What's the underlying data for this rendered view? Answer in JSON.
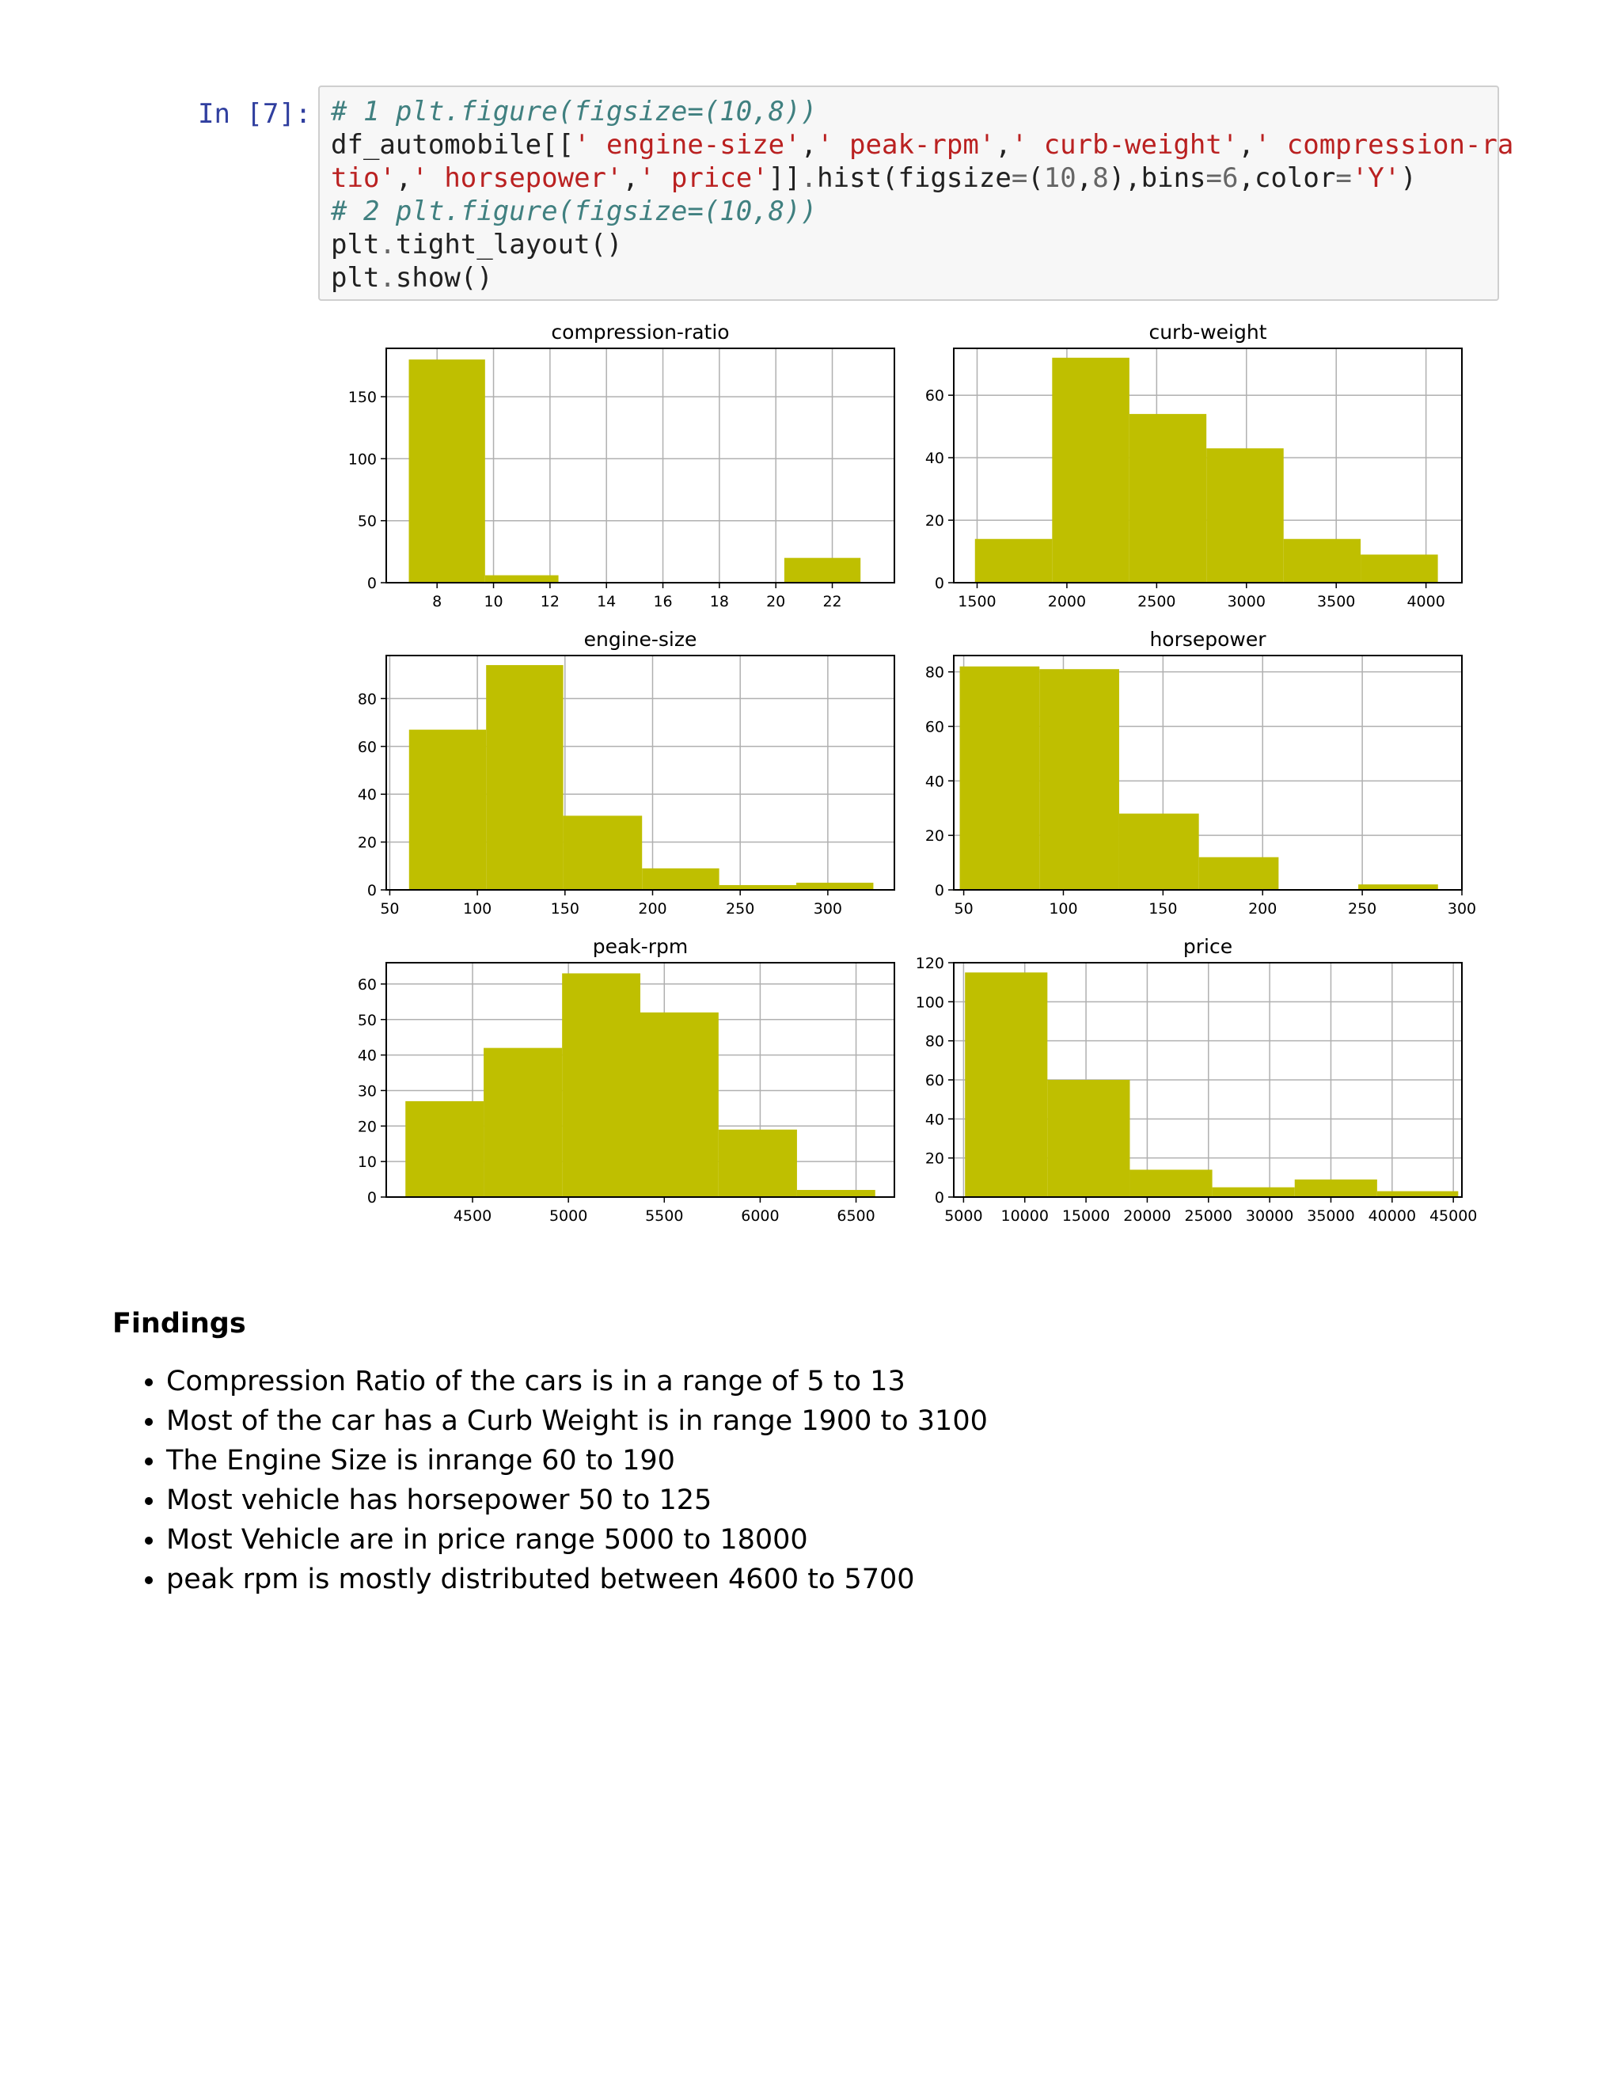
{
  "cell": {
    "prompt": "In [7]:",
    "code": [
      [
        {
          "t": "# 1 plt.figure(figsize=(10,8))",
          "c": "cm"
        }
      ],
      [
        {
          "t": "df_automobile[[",
          "c": ""
        },
        {
          "t": "' engine-size'",
          "c": "st"
        },
        {
          "t": ",",
          "c": ""
        },
        {
          "t": "' peak-rpm'",
          "c": "st"
        },
        {
          "t": ",",
          "c": ""
        },
        {
          "t": "' curb-weight'",
          "c": "st"
        },
        {
          "t": ",",
          "c": ""
        },
        {
          "t": "' compression-ra",
          "c": "st"
        }
      ],
      [
        {
          "t": "tio'",
          "c": "st"
        },
        {
          "t": ",",
          "c": ""
        },
        {
          "t": "' horsepower'",
          "c": "st"
        },
        {
          "t": ",",
          "c": ""
        },
        {
          "t": "' price'",
          "c": "st"
        },
        {
          "t": "]]",
          "c": ""
        },
        {
          "t": ".",
          "c": "op"
        },
        {
          "t": "hist(figsize",
          "c": ""
        },
        {
          "t": "=",
          "c": "op"
        },
        {
          "t": "(",
          "c": ""
        },
        {
          "t": "10",
          "c": "nu"
        },
        {
          "t": ",",
          "c": ""
        },
        {
          "t": "8",
          "c": "nu"
        },
        {
          "t": "),bins",
          "c": ""
        },
        {
          "t": "=",
          "c": "op"
        },
        {
          "t": "6",
          "c": "nu"
        },
        {
          "t": ",color",
          "c": ""
        },
        {
          "t": "=",
          "c": "op"
        },
        {
          "t": "'Y'",
          "c": "st"
        },
        {
          "t": ")",
          "c": ""
        }
      ],
      [
        {
          "t": "# 2 plt.figure(figsize=(10,8))",
          "c": "cm"
        }
      ],
      [
        {
          "t": "plt",
          "c": ""
        },
        {
          "t": ".",
          "c": "op"
        },
        {
          "t": "tight_layout()",
          "c": ""
        }
      ],
      [
        {
          "t": "plt",
          "c": ""
        },
        {
          "t": ".",
          "c": "op"
        },
        {
          "t": "show()",
          "c": ""
        }
      ]
    ]
  },
  "colors": {
    "bar": "#bfbf00",
    "grid": "#b0b0b0",
    "axis": "#000000"
  },
  "chart_data": [
    {
      "type": "bar",
      "title": "compression-ratio",
      "xlim": [
        6.2,
        24.2
      ],
      "ylim": [
        0,
        189
      ],
      "xticks": [
        8,
        10,
        12,
        14,
        16,
        18,
        20,
        22
      ],
      "yticks": [
        0,
        50,
        100,
        150
      ],
      "bins": [
        [
          7,
          9.7,
          180
        ],
        [
          9.7,
          12.3,
          6
        ],
        [
          12.3,
          15,
          0
        ],
        [
          15,
          17.7,
          0
        ],
        [
          17.7,
          20.3,
          0
        ],
        [
          20.3,
          23,
          20
        ]
      ]
    },
    {
      "type": "bar",
      "title": "curb-weight",
      "xlim": [
        1370,
        4200
      ],
      "ylim": [
        0,
        75
      ],
      "xticks": [
        1500,
        2000,
        2500,
        3000,
        3500,
        4000
      ],
      "yticks": [
        0,
        20,
        40,
        60
      ],
      "bins": [
        [
          1488,
          1918,
          14
        ],
        [
          1918,
          2348,
          72
        ],
        [
          2348,
          2777,
          54
        ],
        [
          2777,
          3207,
          43
        ],
        [
          3207,
          3636,
          14
        ],
        [
          3636,
          4066,
          9
        ]
      ]
    },
    {
      "type": "bar",
      "title": "engine-size",
      "xlim": [
        48,
        338
      ],
      "ylim": [
        0,
        98
      ],
      "xticks": [
        50,
        100,
        150,
        200,
        250,
        300
      ],
      "yticks": [
        0,
        20,
        40,
        60,
        80
      ],
      "bins": [
        [
          61,
          105,
          67
        ],
        [
          105,
          149,
          94
        ],
        [
          149,
          194,
          31
        ],
        [
          194,
          238,
          9
        ],
        [
          238,
          282,
          2
        ],
        [
          282,
          326,
          3
        ]
      ]
    },
    {
      "type": "bar",
      "title": "horsepower",
      "xlim": [
        45,
        300
      ],
      "ylim": [
        0,
        86
      ],
      "xticks": [
        50,
        100,
        150,
        200,
        250,
        300
      ],
      "yticks": [
        0,
        20,
        40,
        60,
        80
      ],
      "bins": [
        [
          48,
          88,
          82
        ],
        [
          88,
          128,
          81
        ],
        [
          128,
          168,
          28
        ],
        [
          168,
          208,
          12
        ],
        [
          208,
          248,
          0
        ],
        [
          248,
          288,
          2
        ]
      ]
    },
    {
      "type": "bar",
      "title": "peak-rpm",
      "xlim": [
        4050,
        6700
      ],
      "ylim": [
        0,
        66
      ],
      "xticks": [
        4500,
        5000,
        5500,
        6000,
        6500
      ],
      "yticks": [
        0,
        10,
        20,
        30,
        40,
        50,
        60
      ],
      "bins": [
        [
          4150,
          4558,
          27
        ],
        [
          4558,
          4967,
          42
        ],
        [
          4967,
          5375,
          63
        ],
        [
          5375,
          5783,
          52
        ],
        [
          5783,
          6192,
          19
        ],
        [
          6192,
          6600,
          2
        ]
      ]
    },
    {
      "type": "bar",
      "title": "price",
      "xlim": [
        4200,
        45700
      ],
      "ylim": [
        0,
        120
      ],
      "xticks": [
        5000,
        10000,
        15000,
        20000,
        25000,
        30000,
        35000,
        40000,
        45000
      ],
      "yticks": [
        0,
        20,
        40,
        60,
        80,
        100,
        120
      ],
      "bins": [
        [
          5118,
          11849,
          115
        ],
        [
          11849,
          18581,
          60
        ],
        [
          18581,
          25312,
          14
        ],
        [
          25312,
          32044,
          5
        ],
        [
          32044,
          38775,
          9
        ],
        [
          38775,
          45400,
          3
        ]
      ]
    }
  ],
  "findings": {
    "heading": "Findings",
    "items": [
      "Compression Ratio of the cars is in a range of 5 to 13",
      "Most of the car has a Curb Weight is in range 1900 to 3100",
      "The Engine Size is inrange 60 to 190",
      "Most vehicle has horsepower 50 to 125",
      "Most Vehicle are in price range 5000 to 18000",
      "peak rpm is mostly distributed between 4600 to 5700"
    ]
  }
}
